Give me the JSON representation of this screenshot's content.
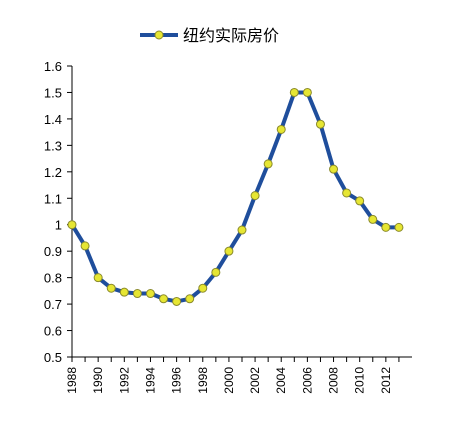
{
  "chart_data": {
    "type": "line",
    "title": "",
    "xlabel": "",
    "ylabel": "",
    "x": [
      1988,
      1989,
      1990,
      1991,
      1992,
      1993,
      1994,
      1995,
      1996,
      1997,
      1998,
      1999,
      2000,
      2001,
      2002,
      2003,
      2004,
      2005,
      2006,
      2007,
      2008,
      2009,
      2010,
      2011,
      2012,
      2013
    ],
    "series": [
      {
        "name": "纽约实际房价",
        "values": [
          1.0,
          0.92,
          0.8,
          0.76,
          0.745,
          0.74,
          0.74,
          0.72,
          0.71,
          0.72,
          0.76,
          0.82,
          0.9,
          0.98,
          1.11,
          1.23,
          1.36,
          1.5,
          1.5,
          1.38,
          1.21,
          1.12,
          1.09,
          1.02,
          0.99,
          0.99
        ]
      }
    ],
    "xlim": [
      1988,
      2014
    ],
    "ylim": [
      0.5,
      1.6
    ],
    "y_ticks": [
      "0.5",
      "0.6",
      "0.7",
      "0.8",
      "0.9",
      "1",
      "1.1",
      "1.2",
      "1.3",
      "1.4",
      "1.5",
      "1.6"
    ],
    "x_ticks": [
      "1988",
      "1990",
      "1992",
      "1994",
      "1996",
      "1998",
      "2000",
      "2002",
      "2004",
      "2006",
      "2008",
      "2010",
      "2012"
    ],
    "legend_position": "top-center",
    "grid": false,
    "colors": {
      "line": "#1f4e9c",
      "marker_fill": "#e6e633",
      "marker_stroke": "#8a8a2a",
      "axis": "#000000"
    }
  }
}
